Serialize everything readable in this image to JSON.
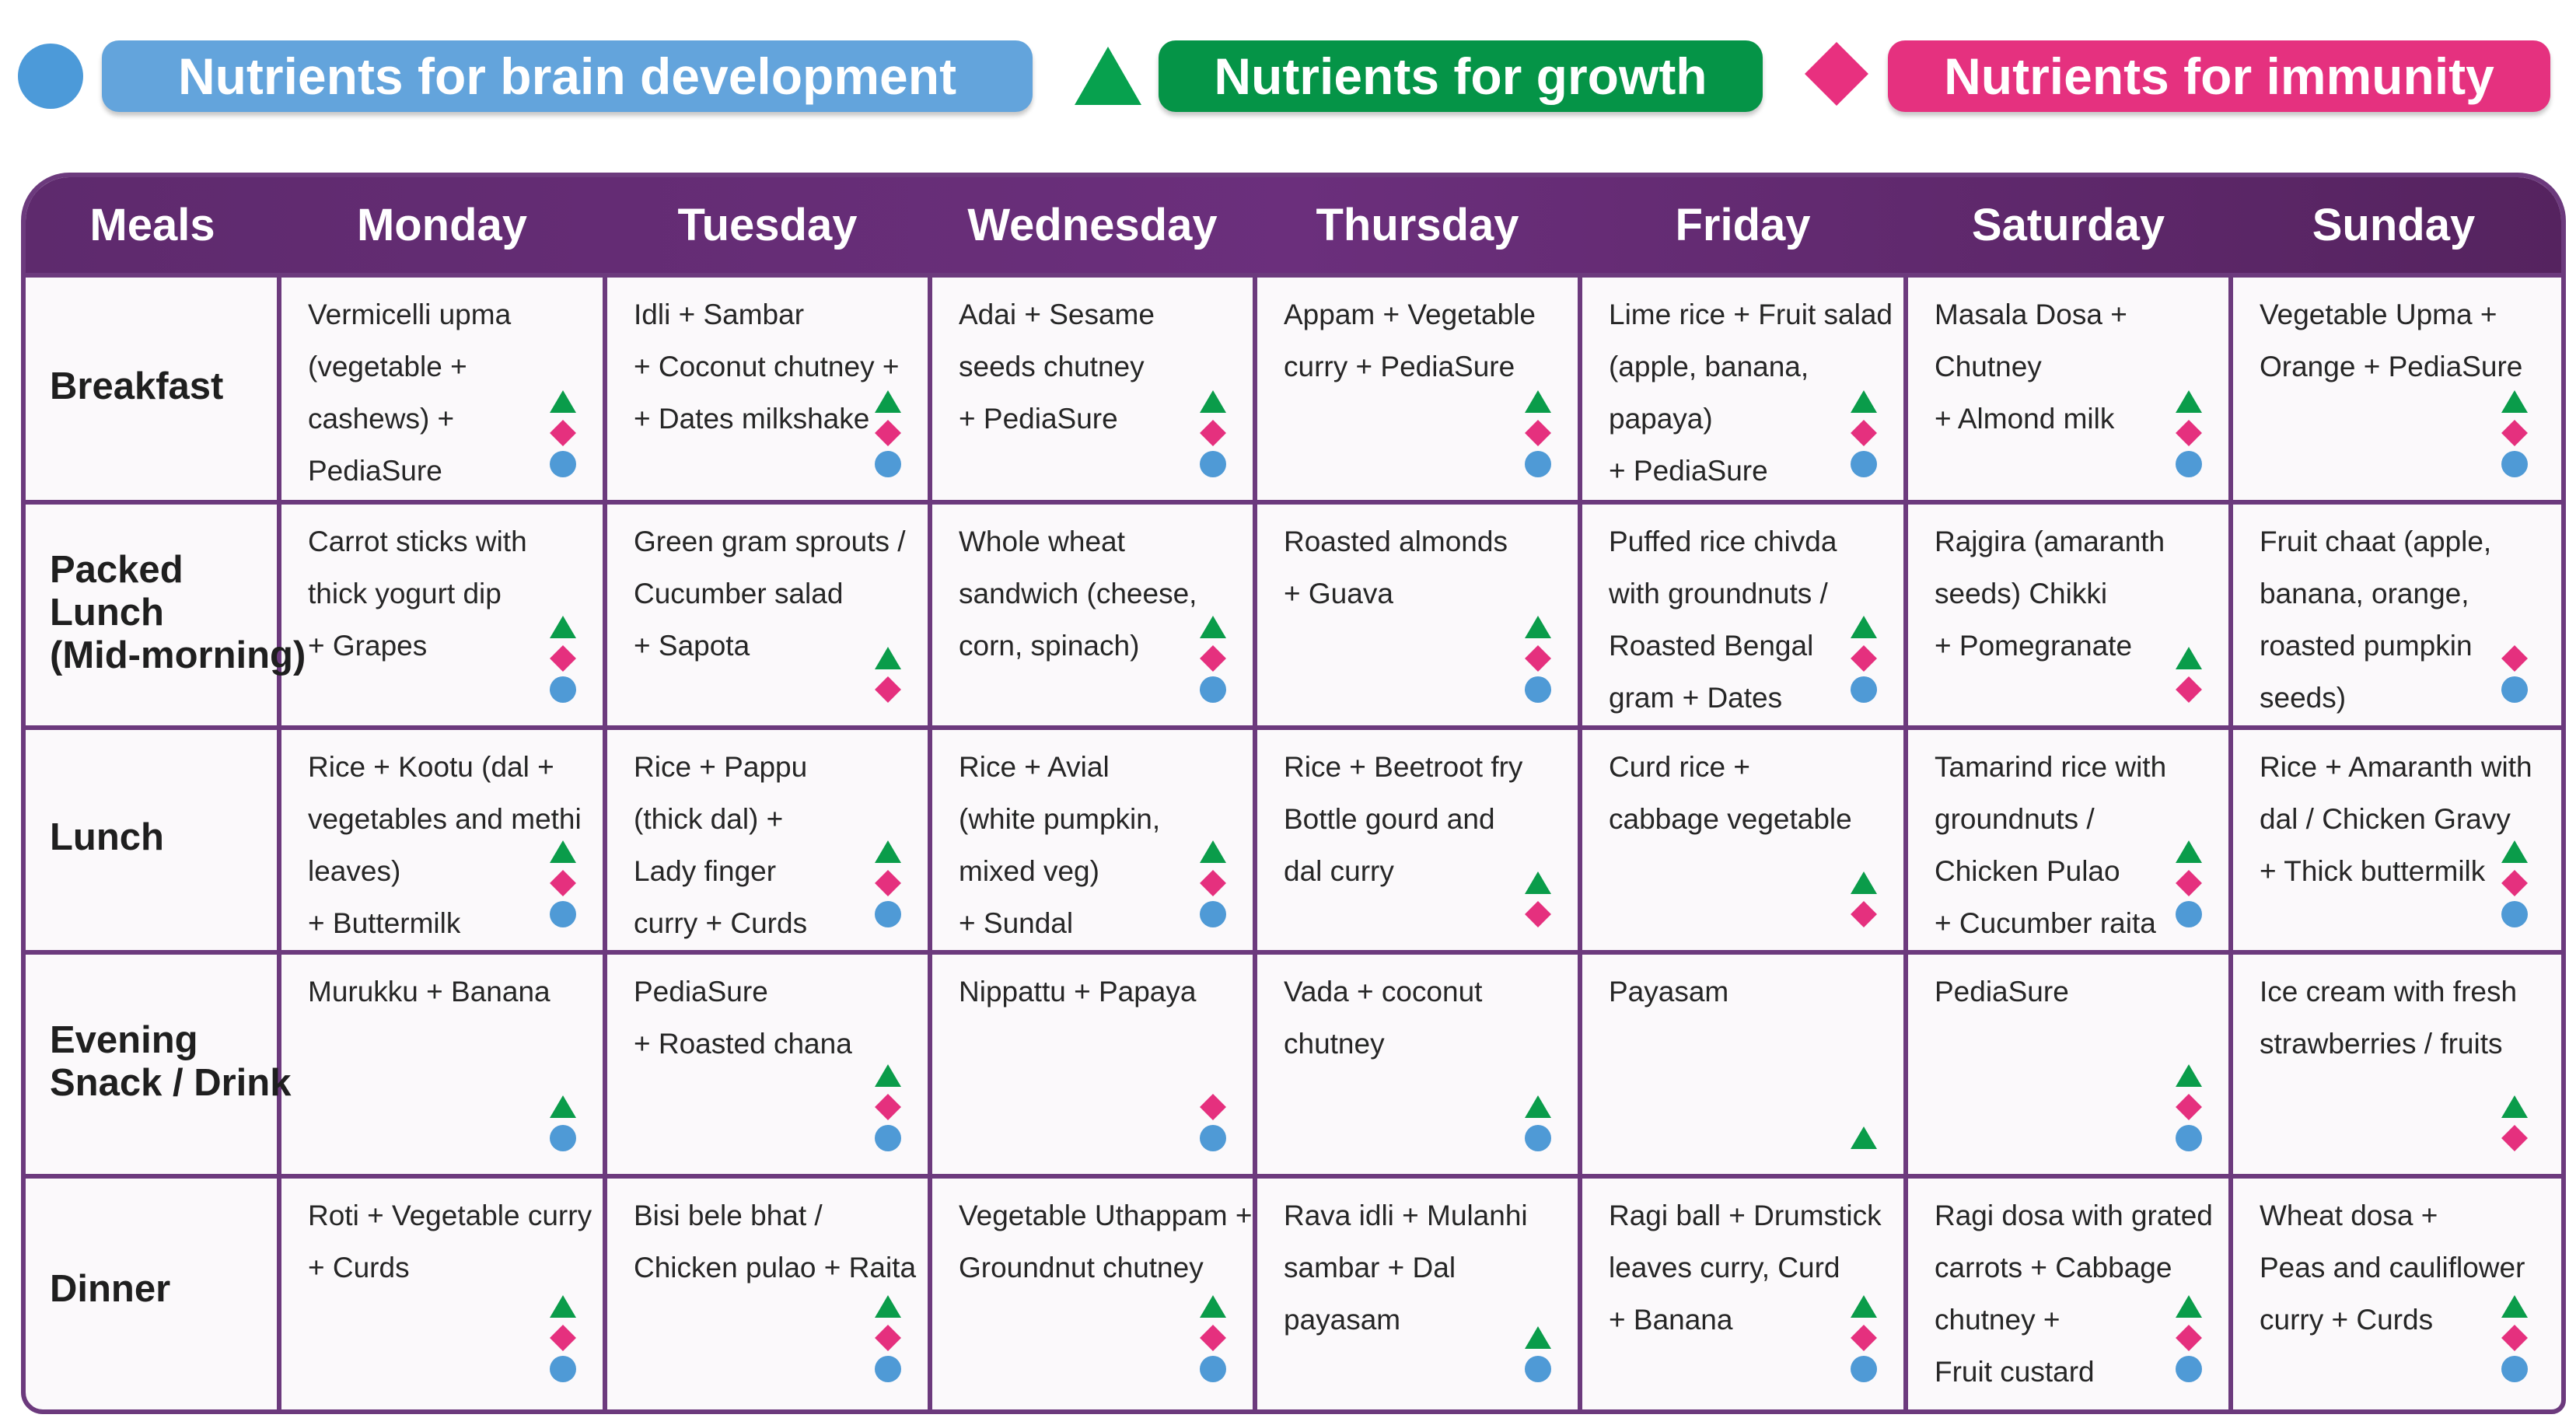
{
  "legend": {
    "brain": {
      "label": "Nutrients for brain development",
      "symbol": "circle-icon",
      "color": "#63a4dc"
    },
    "growth": {
      "label": "Nutrients for growth",
      "symbol": "triangle-icon",
      "color": "#059447"
    },
    "immunity": {
      "label": "Nutrients for immunity",
      "symbol": "diamond-icon",
      "color": "#e5317f"
    }
  },
  "table": {
    "header": [
      "Meals",
      "Monday",
      "Tuesday",
      "Wednesday",
      "Thursday",
      "Friday",
      "Saturday",
      "Sunday"
    ],
    "header_color": "#5e2a6d",
    "rows": [
      {
        "meal": [
          "Breakfast"
        ],
        "cells": [
          {
            "lines": [
              "Vermicelli upma",
              "(vegetable +",
              "cashews) +",
              "PediaSure"
            ],
            "markers": [
              "growth",
              "immunity",
              "brain"
            ]
          },
          {
            "lines": [
              "Idli + Sambar",
              "+ Coconut chutney +",
              "+ Dates milkshake"
            ],
            "markers": [
              "growth",
              "immunity",
              "brain"
            ]
          },
          {
            "lines": [
              "Adai + Sesame",
              "seeds chutney",
              "+ PediaSure"
            ],
            "markers": [
              "growth",
              "immunity",
              "brain"
            ]
          },
          {
            "lines": [
              "Appam + Vegetable",
              "curry + PediaSure"
            ],
            "markers": [
              "growth",
              "immunity",
              "brain"
            ]
          },
          {
            "lines": [
              "Lime rice + Fruit salad",
              "(apple, banana,",
              "papaya)",
              " + PediaSure"
            ],
            "markers": [
              "growth",
              "immunity",
              "brain"
            ]
          },
          {
            "lines": [
              "Masala Dosa +",
              "Chutney",
              "+ Almond milk"
            ],
            "markers": [
              "growth",
              "immunity",
              "brain"
            ]
          },
          {
            "lines": [
              "Vegetable Upma +",
              "Orange + PediaSure"
            ],
            "markers": [
              "growth",
              "immunity",
              "brain"
            ]
          }
        ]
      },
      {
        "meal": [
          "Packed",
          "Lunch",
          "(Mid-morning)"
        ],
        "cells": [
          {
            "lines": [
              "Carrot sticks with",
              "thick yogurt dip",
              "+ Grapes"
            ],
            "markers": [
              "growth",
              "immunity",
              "brain"
            ]
          },
          {
            "lines": [
              "Green gram sprouts /",
              "Cucumber salad",
              " + Sapota"
            ],
            "markers": [
              "growth",
              "immunity"
            ]
          },
          {
            "lines": [
              "Whole wheat",
              "sandwich (cheese,",
              "corn, spinach)"
            ],
            "markers": [
              "growth",
              "immunity",
              "brain"
            ]
          },
          {
            "lines": [
              "Roasted almonds",
              "+ Guava"
            ],
            "markers": [
              "growth",
              "immunity",
              "brain"
            ]
          },
          {
            "lines": [
              "Puffed rice chivda",
              "with groundnuts /",
              "Roasted Bengal",
              " gram + Dates"
            ],
            "markers": [
              "growth",
              "immunity",
              "brain"
            ]
          },
          {
            "lines": [
              "Rajgira (amaranth",
              "seeds) Chikki",
              "+ Pomegranate"
            ],
            "markers": [
              "growth",
              "immunity"
            ]
          },
          {
            "lines": [
              "Fruit chaat (apple,",
              "banana, orange,",
              "roasted pumpkin",
              "seeds)"
            ],
            "markers": [
              "immunity",
              "brain"
            ]
          }
        ]
      },
      {
        "meal": [
          "Lunch"
        ],
        "cells": [
          {
            "lines": [
              "Rice + Kootu (dal +",
              "vegetables and methi",
              "leaves)",
              "+ Buttermilk"
            ],
            "markers": [
              "growth",
              "immunity",
              "brain"
            ]
          },
          {
            "lines": [
              "Rice + Pappu",
              "(thick dal) +",
              "Lady finger",
              "curry + Curds"
            ],
            "markers": [
              "growth",
              "immunity",
              "brain"
            ]
          },
          {
            "lines": [
              "Rice + Avial",
              "(white pumpkin,",
              "mixed veg)",
              "+ Sundal"
            ],
            "markers": [
              "growth",
              "immunity",
              "brain"
            ]
          },
          {
            "lines": [
              "Rice + Beetroot fry",
              "Bottle gourd and",
              "dal curry"
            ],
            "markers": [
              "growth",
              "immunity"
            ]
          },
          {
            "lines": [
              "Curd rice +",
              "cabbage vegetable"
            ],
            "markers": [
              "growth",
              "immunity"
            ]
          },
          {
            "lines": [
              "Tamarind rice with",
              "groundnuts /",
              "Chicken Pulao",
              "+ Cucumber raita"
            ],
            "markers": [
              "growth",
              "immunity",
              "brain"
            ]
          },
          {
            "lines": [
              "Rice + Amaranth with",
              "dal / Chicken Gravy",
              "+ Thick buttermilk"
            ],
            "markers": [
              "growth",
              "immunity",
              "brain"
            ]
          }
        ]
      },
      {
        "meal": [
          "Evening",
          "Snack / Drink"
        ],
        "cells": [
          {
            "lines": [
              "Murukku + Banana"
            ],
            "markers": [
              "growth",
              "brain"
            ]
          },
          {
            "lines": [
              "PediaSure",
              "+ Roasted chana"
            ],
            "markers": [
              "growth",
              "immunity",
              "brain"
            ]
          },
          {
            "lines": [
              "Nippattu + Papaya"
            ],
            "markers": [
              "immunity",
              "brain"
            ]
          },
          {
            "lines": [
              "Vada + coconut",
              " chutney"
            ],
            "markers": [
              "growth",
              "brain"
            ]
          },
          {
            "lines": [
              "Payasam"
            ],
            "markers": [
              "growth"
            ]
          },
          {
            "lines": [
              "PediaSure"
            ],
            "markers": [
              "growth",
              "immunity",
              "brain"
            ]
          },
          {
            "lines": [
              "Ice cream with fresh",
              "strawberries / fruits"
            ],
            "markers": [
              "growth",
              "immunity"
            ]
          }
        ]
      },
      {
        "meal": [
          "Dinner"
        ],
        "cells": [
          {
            "lines": [
              "Roti + Vegetable curry",
              "+ Curds"
            ],
            "markers": [
              "growth",
              "immunity",
              "brain"
            ]
          },
          {
            "lines": [
              "Bisi bele bhat /",
              "Chicken pulao + Raita"
            ],
            "markers": [
              "growth",
              "immunity",
              "brain"
            ]
          },
          {
            "lines": [
              "Vegetable Uthappam +",
              "Groundnut chutney"
            ],
            "markers": [
              "growth",
              "immunity",
              "brain"
            ]
          },
          {
            "lines": [
              "Rava idli + Mulanhi",
              "sambar + Dal",
              "payasam"
            ],
            "markers": [
              "growth",
              "brain"
            ]
          },
          {
            "lines": [
              "Ragi ball + Drumstick",
              "leaves curry, Curd",
              "+ Banana"
            ],
            "markers": [
              "growth",
              "immunity",
              "brain"
            ]
          },
          {
            "lines": [
              "Ragi dosa with grated",
              "carrots + Cabbage",
              "chutney +",
              "Fruit custard"
            ],
            "markers": [
              "growth",
              "immunity",
              "brain"
            ]
          },
          {
            "lines": [
              "Wheat dosa +",
              "Peas and cauliflower",
              "curry + Curds"
            ],
            "markers": [
              "growth",
              "immunity",
              "brain"
            ]
          }
        ]
      }
    ]
  }
}
